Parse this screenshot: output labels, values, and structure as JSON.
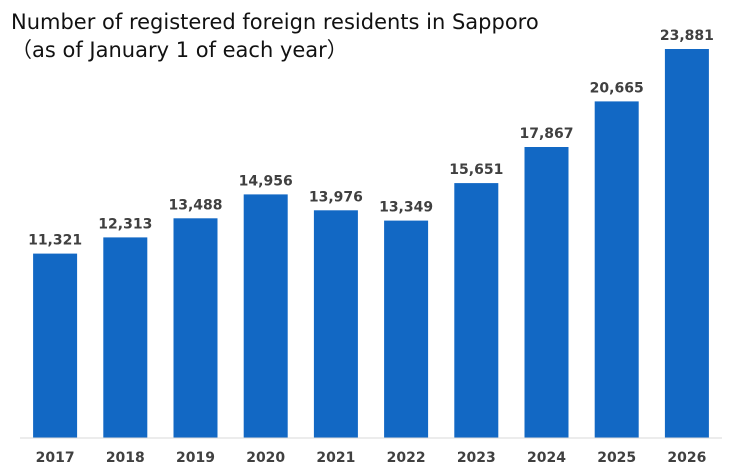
{
  "title_lines": [
    "Number of registered foreign residents in Sapporo",
    "（as of January 1 of each year）"
  ],
  "chart_data": {
    "type": "bar",
    "title": "Number of registered foreign residents in Sapporo （as of January 1 of each year）",
    "categories": [
      "2017",
      "2018",
      "2019",
      "2020",
      "2021",
      "2022",
      "2023",
      "2024",
      "2025",
      "2026"
    ],
    "values": [
      11321,
      12313,
      13488,
      14956,
      13976,
      13349,
      15651,
      17867,
      20665,
      23881
    ],
    "value_labels": [
      "11,321",
      "12,313",
      "13,488",
      "14,956",
      "13,976",
      "13,349",
      "15,651",
      "17,867",
      "20,665",
      "23,881"
    ],
    "ylim": [
      0,
      24000
    ],
    "bar_color": "#1268C4",
    "axis_color": "#D9D9D9",
    "grid": false,
    "legend": "none"
  }
}
